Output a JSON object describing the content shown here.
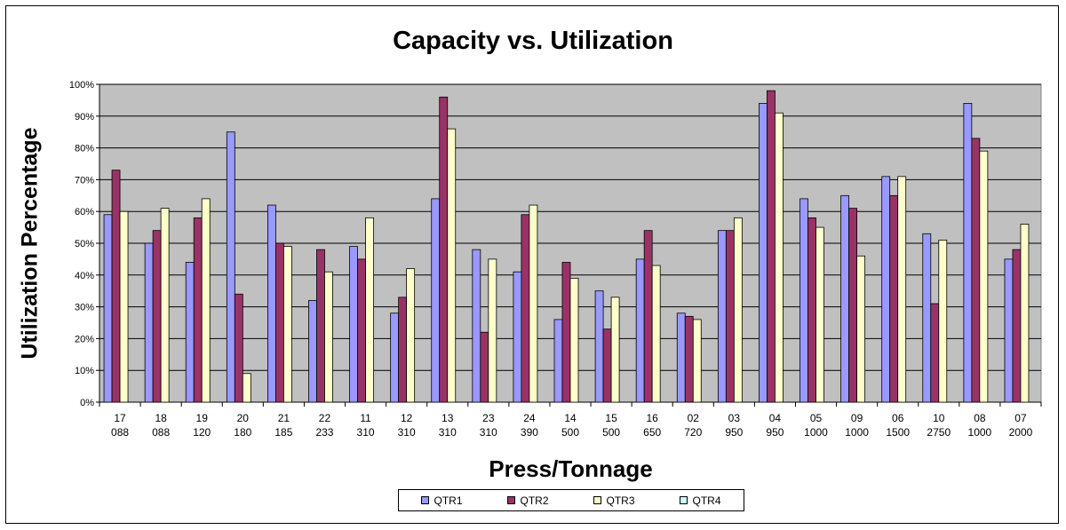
{
  "chart_data": {
    "type": "bar",
    "title": "Capacity vs. Utilization",
    "xlabel": "Press/Tonnage",
    "ylabel": "Utilization Percentage",
    "ylim": [
      0,
      100
    ],
    "yticks": [
      "0%",
      "10%",
      "20%",
      "30%",
      "40%",
      "50%",
      "60%",
      "70%",
      "80%",
      "90%",
      "100%"
    ],
    "grid": true,
    "legend_position": "bottom",
    "plot_background": "#C0C0C0",
    "categories": [
      [
        "17",
        "088"
      ],
      [
        "18",
        "088"
      ],
      [
        "19",
        "120"
      ],
      [
        "20",
        "180"
      ],
      [
        "21",
        "185"
      ],
      [
        "22",
        "233"
      ],
      [
        "11",
        "310"
      ],
      [
        "12",
        "310"
      ],
      [
        "13",
        "310"
      ],
      [
        "23",
        "310"
      ],
      [
        "24",
        "390"
      ],
      [
        "14",
        "500"
      ],
      [
        "15",
        "500"
      ],
      [
        "16",
        "650"
      ],
      [
        "02",
        "720"
      ],
      [
        "03",
        "950"
      ],
      [
        "04",
        "950"
      ],
      [
        "05",
        "1000"
      ],
      [
        "09",
        "1000"
      ],
      [
        "06",
        "1500"
      ],
      [
        "10",
        "2750"
      ],
      [
        "08",
        "1000"
      ],
      [
        "07",
        "2000"
      ]
    ],
    "series": [
      {
        "name": "QTR1",
        "color": "#9999FF",
        "values": [
          59,
          50,
          44,
          85,
          62,
          32,
          49,
          28,
          64,
          48,
          41,
          26,
          35,
          45,
          28,
          54,
          94,
          64,
          65,
          71,
          53,
          94,
          45
        ]
      },
      {
        "name": "QTR2",
        "color": "#993366",
        "values": [
          73,
          54,
          58,
          34,
          50,
          48,
          45,
          33,
          96,
          22,
          59,
          44,
          23,
          54,
          27,
          54,
          98,
          58,
          61,
          65,
          31,
          83,
          48
        ]
      },
      {
        "name": "QTR3",
        "color": "#FFFFCC",
        "values": [
          60,
          61,
          64,
          9,
          49,
          41,
          58,
          42,
          86,
          45,
          62,
          39,
          33,
          43,
          26,
          58,
          91,
          55,
          46,
          71,
          51,
          79,
          56
        ]
      },
      {
        "name": "QTR4",
        "color": "#CCFFFF",
        "values": [
          0,
          0,
          0,
          0,
          0,
          0,
          0,
          0,
          0,
          0,
          0,
          0,
          0,
          0,
          0,
          0,
          0,
          0,
          0,
          0,
          0,
          0,
          0
        ]
      }
    ]
  }
}
